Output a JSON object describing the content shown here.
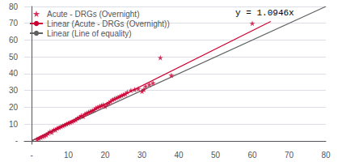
{
  "chart_data": {
    "type": "scatter",
    "annotation": "y = 1.0946x",
    "xlim": [
      -2,
      80
    ],
    "ylim": [
      -2,
      80
    ],
    "xticks": [
      {
        "value": 0,
        "label": "-"
      },
      10,
      20,
      30,
      40,
      50,
      60,
      70,
      80
    ],
    "yticks": [
      {
        "value": 0,
        "label": "-"
      },
      10,
      20,
      30,
      40,
      50,
      60,
      70,
      80
    ],
    "grid": "y",
    "legend": "upper left",
    "series": [
      {
        "name": "Acute - DRGs (Overnight)",
        "type": "scatter",
        "marker": "star",
        "color": "#cc0033",
        "values": [
          [
            1.5,
            1.0
          ],
          [
            2.0,
            1.5
          ],
          [
            2.5,
            2.0
          ],
          [
            3.0,
            2.5
          ],
          [
            3.5,
            3.0
          ],
          [
            4.0,
            3.5
          ],
          [
            4.5,
            4.5
          ],
          [
            5.0,
            5.5
          ],
          [
            5.5,
            5.0
          ],
          [
            6.0,
            6.5
          ],
          [
            6.5,
            6.5
          ],
          [
            7.0,
            7.5
          ],
          [
            7.5,
            8.0
          ],
          [
            8.0,
            8.5
          ],
          [
            8.5,
            9.0
          ],
          [
            9.0,
            9.5
          ],
          [
            9.5,
            10.0
          ],
          [
            10.0,
            10.5
          ],
          [
            10.5,
            11.0
          ],
          [
            11.0,
            11.5
          ],
          [
            11.5,
            12.0
          ],
          [
            12.0,
            12.5
          ],
          [
            12.5,
            13.5
          ],
          [
            13.0,
            14.0
          ],
          [
            13.5,
            15.0
          ],
          [
            14.0,
            14.5
          ],
          [
            14.5,
            16.0
          ],
          [
            15.0,
            16.5
          ],
          [
            15.5,
            17.0
          ],
          [
            16.0,
            17.5
          ],
          [
            16.5,
            18.0
          ],
          [
            17.0,
            18.5
          ],
          [
            17.5,
            19.5
          ],
          [
            18.0,
            20.0
          ],
          [
            18.5,
            20.5
          ],
          [
            19.0,
            21.0
          ],
          [
            19.5,
            21.5
          ],
          [
            20.0,
            20.5
          ],
          [
            20.5,
            22.0
          ],
          [
            21.0,
            22.5
          ],
          [
            21.5,
            23.5
          ],
          [
            22.0,
            24.5
          ],
          [
            22.5,
            25.0
          ],
          [
            23.0,
            25.5
          ],
          [
            23.5,
            26.0
          ],
          [
            24.0,
            26.5
          ],
          [
            24.5,
            27.0
          ],
          [
            25.0,
            27.5
          ],
          [
            25.5,
            28.0
          ],
          [
            26.0,
            29.0
          ],
          [
            27.0,
            30.0
          ],
          [
            28.0,
            30.5
          ],
          [
            29.0,
            31.0
          ],
          [
            30.0,
            29.5
          ],
          [
            30.5,
            30.5
          ],
          [
            31.0,
            32.5
          ],
          [
            32.0,
            33.5
          ],
          [
            33.0,
            34.5
          ],
          [
            35.0,
            49.5
          ],
          [
            38.0,
            39.0
          ],
          [
            60.0,
            70.0
          ]
        ]
      },
      {
        "name": "Linear (Acute - DRGs (Overnight))",
        "type": "line",
        "color": "#cc0033",
        "x": [
          0,
          65
        ],
        "values": [
          0,
          71.1
        ]
      },
      {
        "name": "Linear (Line of equality)",
        "type": "line",
        "color": "#606060",
        "x": [
          0,
          80
        ],
        "values": [
          0,
          80
        ]
      }
    ]
  }
}
